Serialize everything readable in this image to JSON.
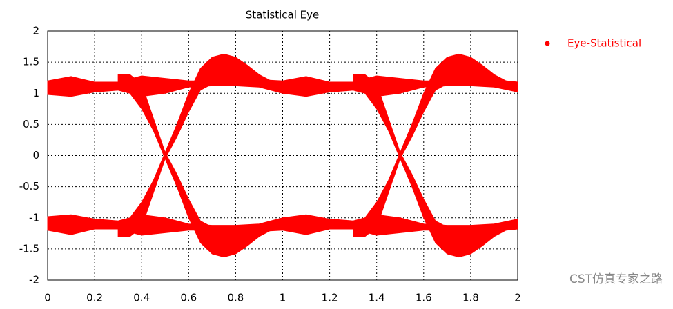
{
  "chart_data": {
    "type": "band",
    "title": "Statistical Eye",
    "xlim": [
      0,
      2
    ],
    "xticks": [
      0,
      0.2,
      0.4,
      0.6,
      0.8,
      1,
      1.2,
      1.4,
      1.6,
      1.8,
      2
    ],
    "ylim": [
      -2,
      2
    ],
    "yticks": [
      -2,
      -1.5,
      -1,
      -0.5,
      0,
      0.5,
      1,
      1.5,
      2
    ],
    "grid": true,
    "legend": "right",
    "annotation": "CST仿真专家之路",
    "series": [
      {
        "name": "Eye-Statistical",
        "color": "#ff0000",
        "bands": [
          {
            "x": [
              0,
              0.1,
              0.2,
              0.3,
              0.4,
              0.5,
              0.6,
              0.7,
              0.8,
              0.9,
              1,
              1.1,
              1.2,
              1.3,
              1.4,
              1.5,
              1.6,
              1.7,
              1.8,
              1.9,
              2
            ],
            "upper": [
              1.2,
              1.27,
              1.18,
              1.18,
              1.28,
              1.24,
              1.2,
              1.2,
              1.22,
              1.22,
              1.2,
              1.27,
              1.18,
              1.18,
              1.28,
              1.24,
              1.2,
              1.2,
              1.22,
              1.22,
              1.18
            ],
            "lower": [
              0.98,
              0.95,
              1.02,
              1.05,
              0.95,
              1.0,
              1.1,
              1.12,
              1.12,
              1.1,
              1.0,
              0.95,
              1.02,
              1.05,
              0.95,
              1.0,
              1.1,
              1.12,
              1.12,
              1.1,
              1.02
            ]
          },
          {
            "x": [
              0,
              0.1,
              0.2,
              0.3,
              0.4,
              0.5,
              0.6,
              0.7,
              0.8,
              0.9,
              1,
              1.1,
              1.2,
              1.3,
              1.4,
              1.5,
              1.6,
              1.7,
              1.8,
              1.9,
              2
            ],
            "upper": [
              -0.98,
              -0.95,
              -1.02,
              -1.05,
              -0.95,
              -1.0,
              -1.1,
              -1.12,
              -1.12,
              -1.1,
              -1.0,
              -0.95,
              -1.02,
              -1.05,
              -0.95,
              -1.0,
              -1.1,
              -1.12,
              -1.12,
              -1.1,
              -1.02
            ],
            "lower": [
              -1.2,
              -1.27,
              -1.18,
              -1.18,
              -1.28,
              -1.24,
              -1.2,
              -1.2,
              -1.22,
              -1.22,
              -1.2,
              -1.27,
              -1.18,
              -1.18,
              -1.28,
              -1.24,
              -1.2,
              -1.2,
              -1.22,
              -1.22,
              -1.18
            ]
          },
          {
            "x": [
              0.3,
              0.35,
              0.4,
              0.45,
              0.5,
              0.55,
              0.6,
              0.65,
              0.7,
              0.75,
              0.8,
              0.85,
              0.9,
              0.95
            ],
            "upper": [
              -1.15,
              -1.0,
              -0.75,
              -0.4,
              0.05,
              0.5,
              1.0,
              1.4,
              1.58,
              1.63,
              1.58,
              1.45,
              1.3,
              1.2
            ],
            "lower": [
              -1.3,
              -1.3,
              -1.15,
              -0.6,
              -0.05,
              0.3,
              0.7,
              1.05,
              1.15,
              1.2,
              1.18,
              1.15,
              1.12,
              1.1
            ]
          },
          {
            "x": [
              0.3,
              0.35,
              0.4,
              0.45,
              0.5,
              0.55,
              0.6,
              0.65,
              0.7,
              0.75,
              0.8,
              0.85,
              0.9,
              0.95
            ],
            "upper": [
              1.3,
              1.3,
              1.15,
              0.6,
              0.05,
              -0.3,
              -0.7,
              -1.05,
              -1.15,
              -1.2,
              -1.18,
              -1.15,
              -1.12,
              -1.1
            ],
            "lower": [
              1.15,
              1.0,
              0.75,
              0.4,
              -0.05,
              -0.5,
              -1.0,
              -1.4,
              -1.58,
              -1.63,
              -1.58,
              -1.45,
              -1.3,
              -1.2
            ]
          },
          {
            "x": [
              1.3,
              1.35,
              1.4,
              1.45,
              1.5,
              1.55,
              1.6,
              1.65,
              1.7,
              1.75,
              1.8,
              1.85,
              1.9,
              1.95
            ],
            "upper": [
              -1.15,
              -1.0,
              -0.75,
              -0.4,
              0.05,
              0.5,
              1.0,
              1.4,
              1.58,
              1.63,
              1.58,
              1.45,
              1.3,
              1.2
            ],
            "lower": [
              -1.3,
              -1.3,
              -1.15,
              -0.6,
              -0.05,
              0.3,
              0.7,
              1.05,
              1.15,
              1.2,
              1.18,
              1.15,
              1.12,
              1.1
            ]
          },
          {
            "x": [
              1.3,
              1.35,
              1.4,
              1.45,
              1.5,
              1.55,
              1.6,
              1.65,
              1.7,
              1.75,
              1.8,
              1.85,
              1.9,
              1.95
            ],
            "upper": [
              1.3,
              1.3,
              1.15,
              0.6,
              0.05,
              -0.3,
              -0.7,
              -1.05,
              -1.15,
              -1.2,
              -1.18,
              -1.15,
              -1.12,
              -1.1
            ],
            "lower": [
              1.15,
              1.0,
              0.75,
              0.4,
              -0.05,
              -0.5,
              -1.0,
              -1.4,
              -1.58,
              -1.63,
              -1.58,
              -1.45,
              -1.3,
              -1.2
            ]
          }
        ]
      }
    ]
  }
}
